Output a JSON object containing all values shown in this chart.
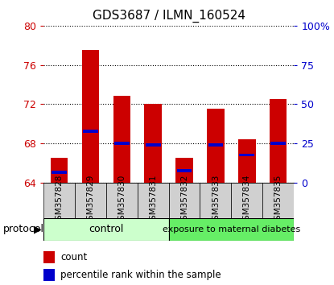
{
  "title": "GDS3687 / ILMN_160524",
  "samples": [
    "GSM357828",
    "GSM357829",
    "GSM357830",
    "GSM357831",
    "GSM357832",
    "GSM357833",
    "GSM357834",
    "GSM357835"
  ],
  "red_values": [
    66.5,
    77.5,
    72.8,
    72.0,
    66.5,
    71.5,
    68.4,
    72.5
  ],
  "blue_values": [
    65.05,
    69.2,
    68.0,
    67.8,
    65.2,
    67.8,
    66.8,
    68.0
  ],
  "ylim_left": [
    64,
    80
  ],
  "ylim_right": [
    0,
    100
  ],
  "yticks_left": [
    64,
    68,
    72,
    76,
    80
  ],
  "yticks_right": [
    0,
    25,
    50,
    75,
    100
  ],
  "ytick_labels_right": [
    "0",
    "25",
    "50",
    "75",
    "100%"
  ],
  "bar_width": 0.55,
  "red_color": "#cc0000",
  "blue_color": "#0000cc",
  "control_color": "#ccffcc",
  "exposure_color": "#66ee66",
  "left_axis_color": "#cc0000",
  "right_axis_color": "#0000cc",
  "protocol_label": "protocol",
  "group1_label": "control",
  "group2_label": "exposure to maternal diabetes",
  "group1_count": 4,
  "group2_count": 4,
  "legend_red": "count",
  "legend_blue": "percentile rank within the sample",
  "ticklabel_bg": "#d0d0d0"
}
